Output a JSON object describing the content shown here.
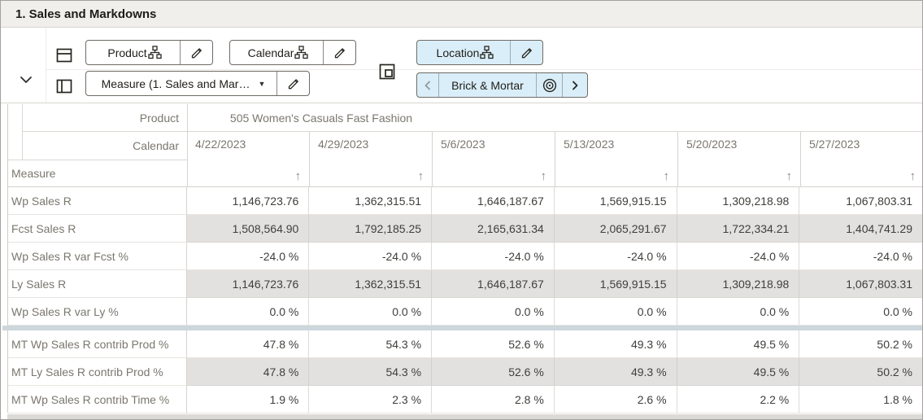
{
  "title": "1. Sales and Markdowns",
  "colors": {
    "titlebar_bg": "#f1efec",
    "chip_blue": "#d9eef8",
    "shaded_row": "#e3e1df",
    "group_separator": "#ccd6dd"
  },
  "toolbar": {
    "collapse_icon": "chevron-down-icon",
    "row_axis": {
      "axis_icon": "row-dimensions-icon",
      "chips": [
        {
          "label": "Product",
          "icons": [
            "hierarchy-icon",
            "edit-pencil-icon"
          ]
        },
        {
          "label": "Calendar",
          "icons": [
            "hierarchy-icon",
            "edit-pencil-icon"
          ]
        }
      ]
    },
    "column_axis": {
      "axis_icon": "column-dimensions-icon",
      "chips": [
        {
          "label": "Measure (1. Sales and Mar…",
          "icons": [
            "dropdown-caret-icon",
            "edit-pencil-icon"
          ]
        }
      ]
    },
    "page_axis": {
      "axis_icon": "page-dimensions-icon",
      "chips": [
        {
          "label": "Location",
          "icons": [
            "hierarchy-icon",
            "edit-pencil-icon"
          ]
        }
      ],
      "slice_navigator": {
        "prev_icon": "chevron-left-icon",
        "label": "Brick & Mortar",
        "target_icon": "bullseye-icon",
        "next_icon": "chevron-right-icon"
      }
    }
  },
  "grid": {
    "row_header_labels": {
      "product": "Product",
      "calendar": "Calendar",
      "measure": "Measure"
    },
    "product_value": "505 Women's Casuals Fast Fashion",
    "sort_icon": "↑",
    "columns": [
      "4/22/2023",
      "4/29/2023",
      "5/6/2023",
      "5/13/2023",
      "5/20/2023",
      "5/27/2023"
    ],
    "rows": [
      {
        "measure": "Wp Sales R",
        "shaded": false,
        "values": [
          "1,146,723.76",
          "1,362,315.51",
          "1,646,187.67",
          "1,569,915.15",
          "1,309,218.98",
          "1,067,803.31"
        ]
      },
      {
        "measure": "Fcst Sales R",
        "shaded": true,
        "values": [
          "1,508,564.90",
          "1,792,185.25",
          "2,165,631.34",
          "2,065,291.67",
          "1,722,334.21",
          "1,404,741.29"
        ]
      },
      {
        "measure": "Wp Sales R var Fcst %",
        "shaded": false,
        "values": [
          "-24.0 %",
          "-24.0 %",
          "-24.0 %",
          "-24.0 %",
          "-24.0 %",
          "-24.0 %"
        ]
      },
      {
        "measure": "Ly Sales R",
        "shaded": true,
        "values": [
          "1,146,723.76",
          "1,362,315.51",
          "1,646,187.67",
          "1,569,915.15",
          "1,309,218.98",
          "1,067,803.31"
        ]
      },
      {
        "measure": "Wp Sales R var Ly %",
        "shaded": false,
        "group_end": true,
        "values": [
          "0.0 %",
          "0.0 %",
          "0.0 %",
          "0.0 %",
          "0.0 %",
          "0.0 %"
        ]
      },
      {
        "measure": "MT Wp Sales R contrib Prod %",
        "shaded": false,
        "values": [
          "47.8 %",
          "54.3 %",
          "52.6 %",
          "49.3 %",
          "49.5 %",
          "50.2 %"
        ]
      },
      {
        "measure": "MT Ly Sales R contrib Prod %",
        "shaded": true,
        "values": [
          "47.8 %",
          "54.3 %",
          "52.6 %",
          "49.3 %",
          "49.5 %",
          "50.2 %"
        ]
      },
      {
        "measure": "MT Wp Sales R contrib Time %",
        "shaded": false,
        "values": [
          "1.9 %",
          "2.3 %",
          "2.8 %",
          "2.6 %",
          "2.2 %",
          "1.8 %"
        ]
      }
    ]
  }
}
